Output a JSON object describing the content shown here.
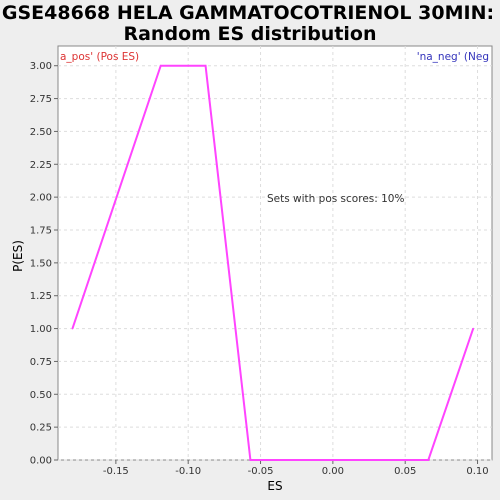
{
  "chart_data": {
    "type": "line",
    "title_line1": "GSE48668 HELA GAMMATOCOTRIENOL 30MIN:",
    "title_line2": "Random ES distribution",
    "xlabel": "ES",
    "ylabel": "P(ES)",
    "xlim": [
      -0.19,
      0.11
    ],
    "ylim": [
      0,
      3.15
    ],
    "x_ticks": [
      -0.15,
      -0.1,
      -0.05,
      0.0,
      0.05,
      0.1
    ],
    "x_tick_labels": [
      "-0.15",
      "-0.10",
      "-0.05",
      "0.00",
      "0.05",
      "0.10"
    ],
    "y_ticks": [
      0,
      0.25,
      0.5,
      0.75,
      1.0,
      1.25,
      1.5,
      1.75,
      2.0,
      2.25,
      2.5,
      2.75,
      3.0
    ],
    "y_tick_labels": [
      "0.00",
      "0.25",
      "0.50",
      "0.75",
      "1.00",
      "1.25",
      "1.50",
      "1.75",
      "2.00",
      "2.25",
      "2.50",
      "2.75",
      "3.00"
    ],
    "grid": true,
    "left_label": "a_pos' (Pos ES)",
    "right_label": "'na_neg' (Neg",
    "annotation": "Sets with pos scores: 10%",
    "series": [
      {
        "color": "#ff44ff",
        "x": [
          -0.18,
          -0.119,
          -0.088,
          -0.057,
          0.066,
          0.097
        ],
        "y": [
          1.0,
          3.0,
          3.0,
          0.0,
          0.0,
          1.0
        ]
      }
    ],
    "colors": {
      "background": "#eeeeee",
      "plot_bg": "#ffffff",
      "grid": "#dddddd",
      "left_label": "#dd3333",
      "right_label": "#3333bb"
    }
  }
}
